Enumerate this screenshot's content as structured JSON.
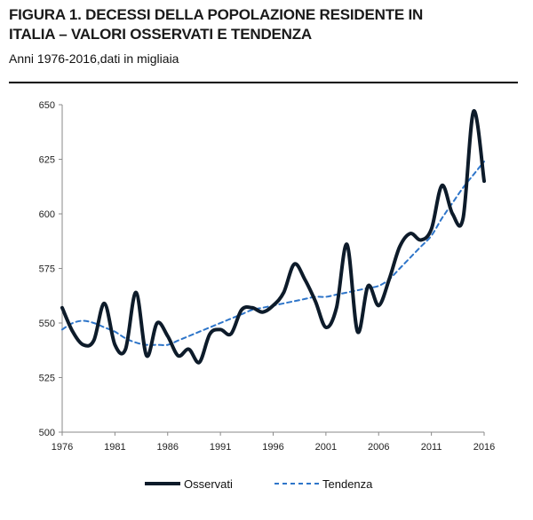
{
  "header": {
    "title_line1": "FIGURA 1. DECESSI DELLA POPOLAZIONE RESIDENTE IN",
    "title_line2": "ITALIA – VALORI OSSERVATI E TENDENZA",
    "subtitle": "Anni 1976-2016,dati in migliaia"
  },
  "chart_data": {
    "type": "line",
    "title": "FIGURA 1. DECESSI DELLA POPOLAZIONE RESIDENTE IN ITALIA – VALORI OSSERVATI E TENDENZA",
    "subtitle": "Anni 1976-2016,dati in migliaia",
    "xlabel": "",
    "ylabel": "",
    "xlim": [
      1976,
      2016
    ],
    "ylim": [
      500,
      650
    ],
    "x_ticks": [
      "1976",
      "1981",
      "1986",
      "1991",
      "1996",
      "2001",
      "2006",
      "2011",
      "2016"
    ],
    "y_ticks": [
      "500",
      "525",
      "550",
      "575",
      "600",
      "625",
      "650"
    ],
    "grid": false,
    "legend": "bottom",
    "x": [
      1976,
      1977,
      1978,
      1979,
      1980,
      1981,
      1982,
      1983,
      1984,
      1985,
      1986,
      1987,
      1988,
      1989,
      1990,
      1991,
      1992,
      1993,
      1994,
      1995,
      1996,
      1997,
      1998,
      1999,
      2000,
      2001,
      2002,
      2003,
      2004,
      2005,
      2006,
      2007,
      2008,
      2009,
      2010,
      2011,
      2012,
      2013,
      2014,
      2015,
      2016
    ],
    "series": [
      {
        "name": "Osservati",
        "color": "#0d1b2a",
        "style": "solid",
        "values": [
          557,
          546,
          540,
          542,
          559,
          540,
          538,
          564,
          535,
          550,
          544,
          535,
          538,
          532,
          545,
          547,
          545,
          556,
          557,
          555,
          558,
          564,
          577,
          570,
          560,
          548,
          557,
          586,
          546,
          567,
          558,
          570,
          585,
          591,
          588,
          593,
          613,
          600,
          598,
          647,
          615
        ]
      },
      {
        "name": "Tendenza",
        "color": "#2e75c9",
        "style": "dashed",
        "values": [
          547,
          550,
          551,
          550,
          548,
          546,
          543,
          541,
          540,
          540,
          540,
          542,
          544,
          546,
          548,
          550,
          552,
          554,
          556,
          557,
          558,
          559,
          560,
          561,
          562,
          562,
          563,
          564,
          565,
          566,
          567,
          570,
          575,
          580,
          585,
          590,
          598,
          605,
          612,
          618,
          624
        ]
      }
    ]
  }
}
